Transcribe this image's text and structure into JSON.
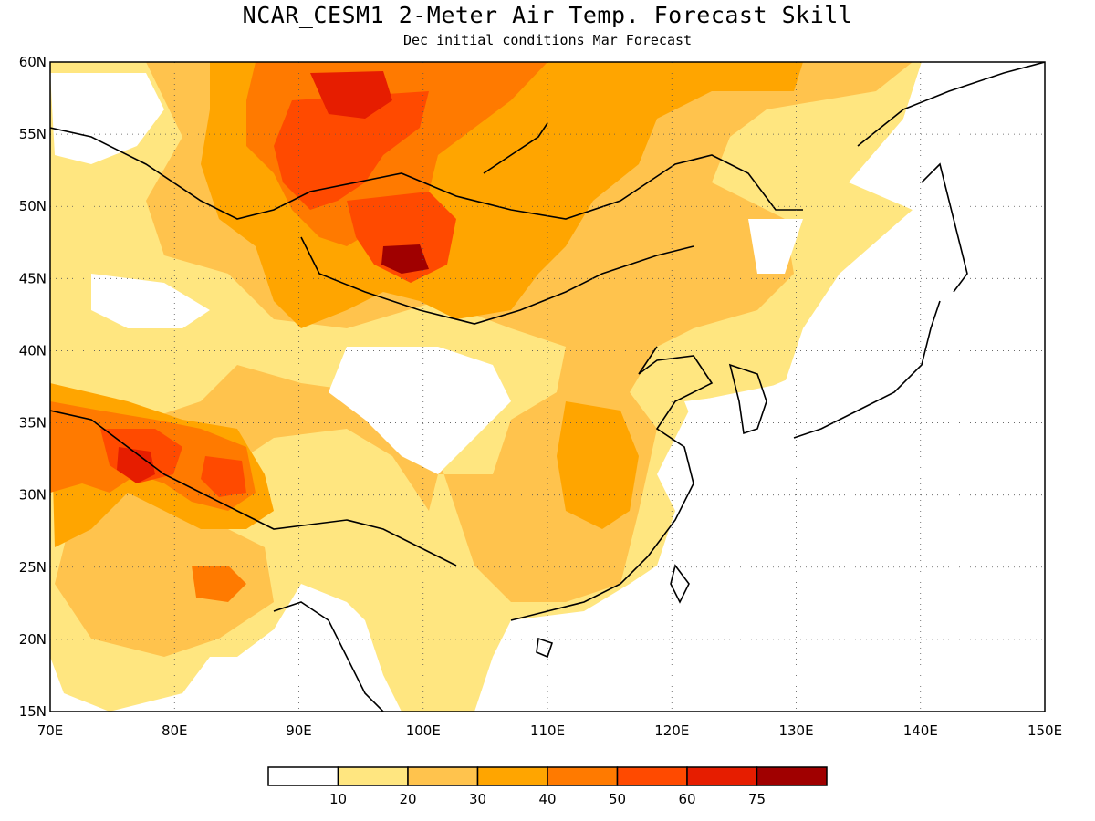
{
  "title": "NCAR_CESM1 2-Meter Air Temp. Forecast Skill",
  "subtitle": "Dec initial conditions  Mar Forecast",
  "map": {
    "lon_range": [
      70,
      150
    ],
    "lat_range": [
      15,
      60
    ],
    "lat_ticks": [
      "15N",
      "20N",
      "25N",
      "30N",
      "35N",
      "40N",
      "45N",
      "50N",
      "55N",
      "60N"
    ],
    "lon_ticks": [
      "70E",
      "80E",
      "90E",
      "100E",
      "110E",
      "120E",
      "130E",
      "140E",
      "150E"
    ],
    "grid": "dotted",
    "colors": {
      "lvl0": "#ffffff",
      "lvl1": "#ffe680",
      "lvl2": "#ffc34d",
      "lvl3": "#ffa500",
      "lvl4": "#ff7a00",
      "lvl5": "#ff4a00",
      "lvl6": "#e61d00",
      "lvl7": "#a00000",
      "coast": "#000000"
    }
  },
  "colorbar": {
    "labels": [
      "10",
      "20",
      "30",
      "40",
      "50",
      "60",
      "75"
    ]
  }
}
